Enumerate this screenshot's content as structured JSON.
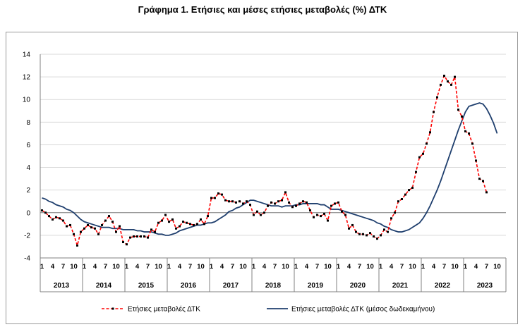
{
  "chart_data": {
    "type": "line",
    "title": "Γράφημα 1. Ετήσιες και μέσες ετήσιες μεταβολές (%) ΔΤΚ",
    "ylim": [
      -4,
      14
    ],
    "yticks": [
      -4,
      -2,
      0,
      2,
      4,
      6,
      8,
      10,
      12,
      14
    ],
    "grid": true,
    "legend_position": "bottom",
    "month_ticks": [
      "1",
      "4",
      "7",
      "10"
    ],
    "years": [
      "2013",
      "2014",
      "2015",
      "2016",
      "2017",
      "2018",
      "2019",
      "2020",
      "2021",
      "2022",
      "2023"
    ],
    "x_start": "2013-01",
    "series": [
      {
        "name": "Ετήσιες μεταβολές ΔΤΚ",
        "color": "#ff0000",
        "style": "dashed-with-markers",
        "values": [
          0.2,
          0.0,
          -0.3,
          -0.6,
          -0.4,
          -0.5,
          -0.7,
          -1.2,
          -1.1,
          -1.9,
          -2.9,
          -1.7,
          -1.4,
          -1.1,
          -1.3,
          -1.4,
          -1.9,
          -1.1,
          -0.7,
          -0.3,
          -0.8,
          -1.7,
          -1.2,
          -2.6,
          -2.8,
          -2.2,
          -2.1,
          -2.1,
          -2.1,
          -2.1,
          -2.2,
          -1.5,
          -1.7,
          -0.9,
          -0.7,
          -0.2,
          -0.8,
          -0.6,
          -1.4,
          -1.2,
          -0.8,
          -0.9,
          -1.0,
          -1.1,
          -1.0,
          -0.6,
          -1.0,
          -0.3,
          1.3,
          1.3,
          1.7,
          1.6,
          1.1,
          1.0,
          1.0,
          0.9,
          1.0,
          0.8,
          1.0,
          0.7,
          -0.2,
          0.1,
          -0.2,
          0.0,
          0.6,
          0.9,
          0.8,
          1.0,
          1.1,
          1.8,
          0.9,
          0.5,
          0.6,
          0.8,
          1.0,
          0.9,
          0.2,
          -0.4,
          -0.2,
          -0.3,
          -0.1,
          -0.7,
          0.6,
          0.8,
          0.9,
          0.1,
          -0.2,
          -1.4,
          -1.1,
          -1.7,
          -1.9,
          -1.9,
          -2.0,
          -1.8,
          -2.1,
          -2.3,
          -2.0,
          -1.5,
          -1.7,
          -0.5,
          0.0,
          1.0,
          1.2,
          1.6,
          2.0,
          2.2,
          3.6,
          4.9,
          5.2,
          6.1,
          7.1,
          8.9,
          10.2,
          11.3,
          12.1,
          11.6,
          11.3,
          12.0,
          9.1,
          8.5,
          7.2,
          7.0,
          6.1,
          4.6,
          3.0,
          2.8,
          1.8
        ]
      },
      {
        "name": "Ετήσιες μεταβολές ΔΤΚ (μέσος δωδεκαμήνου)",
        "color": "#1f3f6e",
        "style": "solid",
        "values": [
          1.3,
          1.2,
          1.0,
          0.9,
          0.7,
          0.6,
          0.5,
          0.3,
          0.2,
          0.0,
          -0.3,
          -0.6,
          -0.8,
          -0.9,
          -1.0,
          -1.1,
          -1.2,
          -1.3,
          -1.3,
          -1.3,
          -1.4,
          -1.4,
          -1.4,
          -1.5,
          -1.5,
          -1.5,
          -1.5,
          -1.6,
          -1.6,
          -1.7,
          -1.7,
          -1.7,
          -1.8,
          -1.9,
          -1.9,
          -2.0,
          -2.0,
          -1.9,
          -1.8,
          -1.6,
          -1.5,
          -1.4,
          -1.3,
          -1.2,
          -1.1,
          -1.1,
          -1.0,
          -0.9,
          -0.9,
          -0.8,
          -0.6,
          -0.4,
          -0.2,
          0.1,
          0.2,
          0.4,
          0.5,
          0.7,
          0.9,
          1.1,
          1.1,
          1.0,
          0.9,
          0.8,
          0.7,
          0.6,
          0.6,
          0.6,
          0.5,
          0.6,
          0.6,
          0.6,
          0.7,
          0.7,
          0.8,
          0.8,
          0.8,
          0.8,
          0.8,
          0.7,
          0.7,
          0.5,
          0.3,
          0.3,
          0.3,
          0.2,
          0.1,
          0.0,
          -0.1,
          -0.2,
          -0.3,
          -0.4,
          -0.5,
          -0.6,
          -0.7,
          -0.9,
          -1.0,
          -1.2,
          -1.3,
          -1.5,
          -1.6,
          -1.7,
          -1.7,
          -1.6,
          -1.5,
          -1.3,
          -1.1,
          -0.9,
          -0.5,
          0.0,
          0.6,
          1.3,
          2.0,
          2.8,
          3.7,
          4.6,
          5.5,
          6.4,
          7.3,
          8.1,
          8.9,
          9.4,
          9.5,
          9.6,
          9.7,
          9.6,
          9.2,
          8.6,
          7.9,
          7.0
        ]
      }
    ]
  }
}
